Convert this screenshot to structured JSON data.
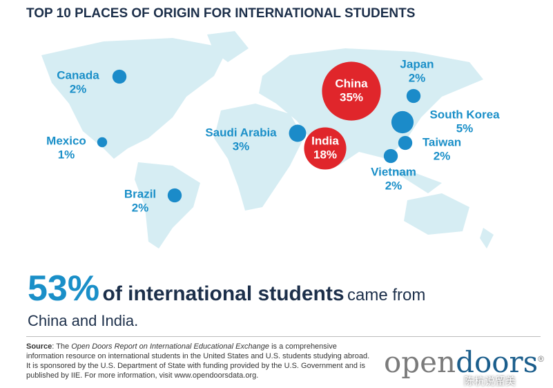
{
  "chart_data": {
    "type": "bubble_map",
    "title": "TOP 10 PLACES OF ORIGIN FOR INTERNATIONAL STUDENTS",
    "categories": [
      "China",
      "India",
      "South Korea",
      "Saudi Arabia",
      "Canada",
      "Japan",
      "Taiwan",
      "Vietnam",
      "Brazil",
      "Mexico"
    ],
    "values": [
      35,
      18,
      5,
      3,
      2,
      2,
      2,
      2,
      2,
      1
    ],
    "value_labels": [
      "35%",
      "18%",
      "5%",
      "3%",
      "2%",
      "2%",
      "2%",
      "2%",
      "2%",
      "1%"
    ],
    "colors": [
      "#e0262b",
      "#e0262b",
      "#1b8bc9",
      "#1b8bc9",
      "#1b8bc9",
      "#1b8bc9",
      "#1b8bc9",
      "#1b8bc9",
      "#1b8bc9",
      "#1b8bc9"
    ]
  },
  "headline": {
    "figure": "53%",
    "bold": "of international students",
    "rest": "came from",
    "line2": "China and India."
  },
  "source": {
    "label": "Source",
    "text1": ": The ",
    "title": "Open Doors Report on International Educational Exchange",
    "text2": " is a comprehensive information resource on international students in the United States and U.S. students studying abroad. It is sponsored by the U.S. Department of State with funding provided by the U.S. Government and is published by IIE. For more information, visit www.opendoorsdata.org."
  },
  "logo": {
    "open": "open",
    "doors": "doors",
    "mark": "®"
  },
  "watermark": "陈杭说留美"
}
